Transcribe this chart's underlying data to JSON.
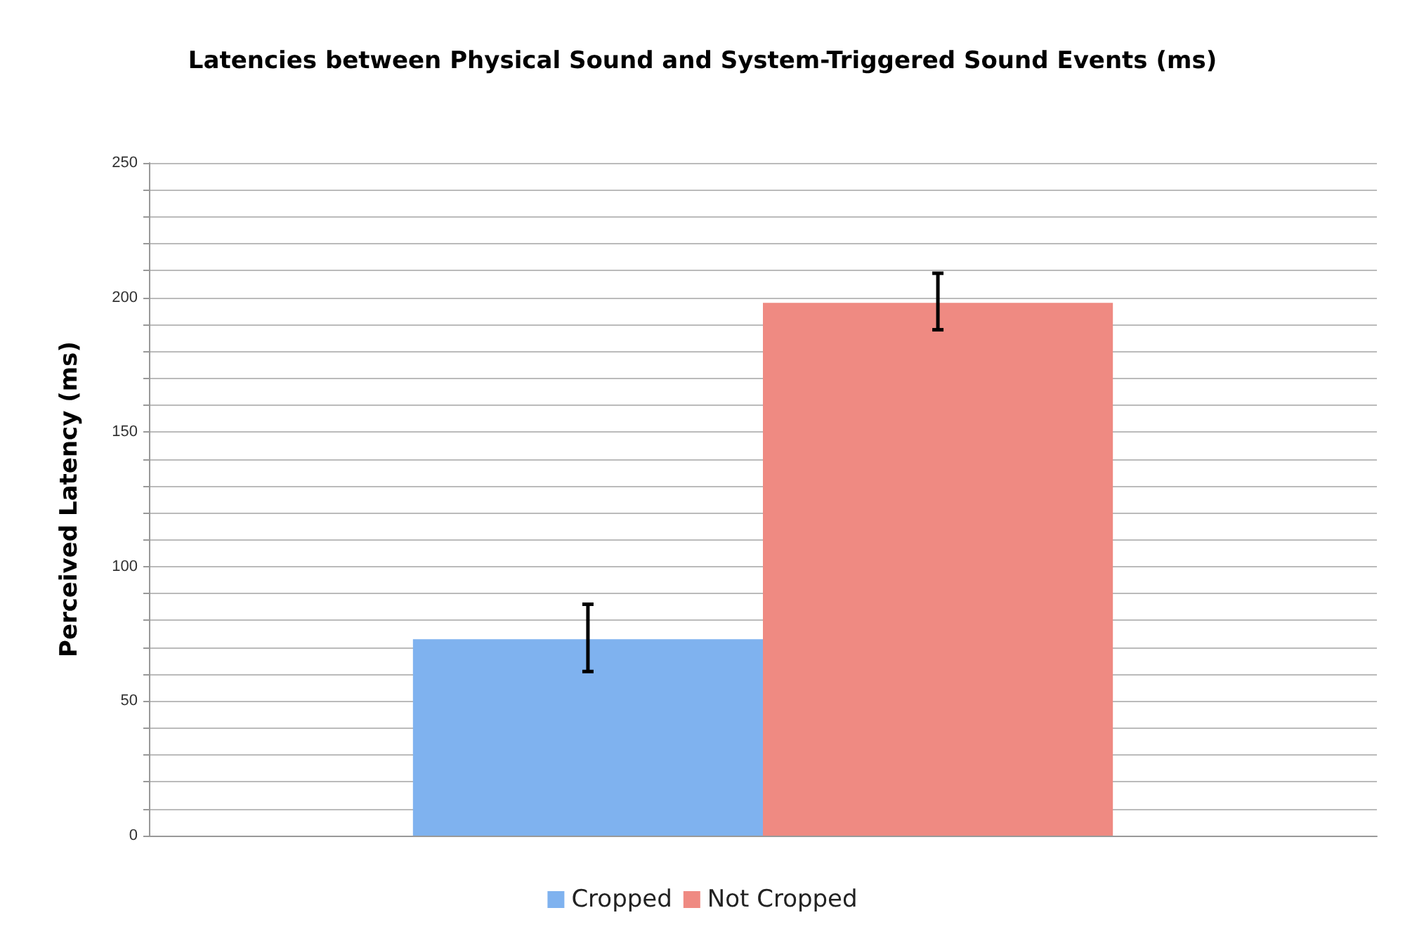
{
  "chart_data": {
    "type": "bar",
    "title": "Latencies between Physical Sound and System-Triggered Sound Events (ms)",
    "ylabel": "Perceived Latency (ms)",
    "categories": [
      null
    ],
    "series": [
      {
        "name": "Cropped",
        "color": "#7fb2ef",
        "values": [
          73
        ],
        "errors": [
          [
            61,
            86
          ]
        ]
      },
      {
        "name": "Not Cropped",
        "color": "#ef8a82",
        "values": [
          198
        ],
        "errors": [
          [
            188,
            209
          ]
        ]
      }
    ],
    "ylim": [
      0,
      250
    ],
    "yticks": [
      0,
      {
        "value": 10,
        "label": null
      },
      {
        "value": 20,
        "label": null
      },
      {
        "value": 30,
        "label": null
      },
      {
        "value": 40,
        "label": null
      },
      50,
      {
        "value": 60,
        "label": null
      },
      {
        "value": 70,
        "label": null
      },
      {
        "value": 80,
        "label": null
      },
      {
        "value": 90,
        "label": null
      },
      100,
      {
        "value": 110,
        "label": null
      },
      {
        "value": 120,
        "label": null
      },
      {
        "value": 130,
        "label": null
      },
      {
        "value": 140,
        "label": null
      },
      150,
      {
        "value": 160,
        "label": null
      },
      {
        "value": 170,
        "label": null
      },
      {
        "value": 180,
        "label": null
      },
      {
        "value": 190,
        "label": null
      },
      200,
      {
        "value": 210,
        "label": null
      },
      {
        "value": 220,
        "label": null
      },
      {
        "value": 230,
        "label": null
      },
      {
        "value": 240,
        "label": null
      },
      250
    ],
    "grid": true,
    "legend": "bottom"
  }
}
